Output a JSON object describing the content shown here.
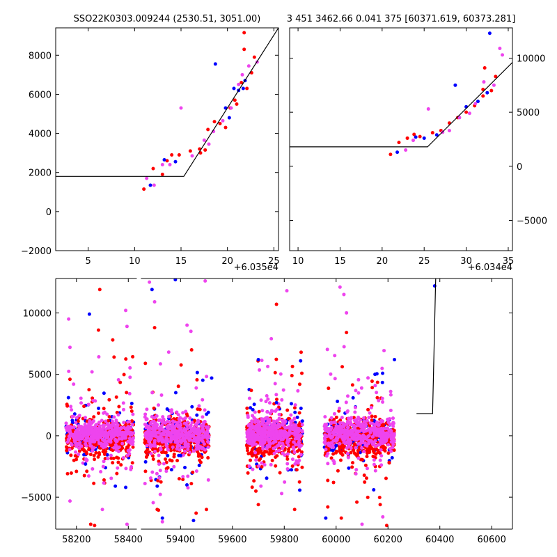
{
  "figure": {
    "background": "#ffffff",
    "colors": {
      "blue": "#0000ff",
      "red": "#ff0000",
      "magenta": "#ee44ee",
      "model": "#000000"
    }
  },
  "chart_data": [
    {
      "id": "panel-left",
      "type": "scatter",
      "title": "SSO22K0303.009244 (2530.51, 3051.00)",
      "x_offset_label": "+6.035e4",
      "xlim": [
        1.5,
        25.5
      ],
      "ylim": [
        -2000,
        9400
      ],
      "xticks": [
        5,
        10,
        15,
        20,
        25
      ],
      "yticks": [
        -2000,
        0,
        2000,
        4000,
        6000,
        8000
      ],
      "ytick_side": "left",
      "model": {
        "x": [
          1.5,
          15.3,
          25.5
        ],
        "y": [
          1800,
          1800,
          9400
        ]
      },
      "series": [
        {
          "color": "#ff0000",
          "points": [
            [
              11,
              1150
            ],
            [
              12,
              2200
            ],
            [
              13,
              1900
            ],
            [
              13.5,
              2600
            ],
            [
              14,
              2900
            ],
            [
              14.8,
              2900
            ],
            [
              16,
              3100
            ],
            [
              17,
              3200
            ],
            [
              17.6,
              3150
            ],
            [
              17.9,
              4200
            ],
            [
              18.6,
              4600
            ],
            [
              19.2,
              4500
            ],
            [
              19.8,
              4300
            ],
            [
              20.3,
              5300
            ],
            [
              20.8,
              5700
            ],
            [
              21,
              5500
            ],
            [
              21.5,
              6600
            ],
            [
              21.8,
              8300
            ],
            [
              21.8,
              9150
            ],
            [
              22.1,
              6300
            ],
            [
              22.6,
              7100
            ],
            [
              22.9,
              7900
            ],
            [
              17.1,
              3000
            ]
          ]
        },
        {
          "color": "#0000ff",
          "points": [
            [
              11.7,
              1350
            ],
            [
              13.2,
              2650
            ],
            [
              14.4,
              2550
            ],
            [
              18.7,
              7550
            ],
            [
              19.8,
              5300
            ],
            [
              20.2,
              4800
            ],
            [
              20.7,
              6300
            ],
            [
              21.2,
              6200
            ],
            [
              21.7,
              6300
            ],
            [
              21.9,
              6700
            ]
          ]
        },
        {
          "color": "#ee44ee",
          "points": [
            [
              11.3,
              1700
            ],
            [
              12.1,
              1350
            ],
            [
              13,
              2400
            ],
            [
              13.8,
              2400
            ],
            [
              15,
              5300
            ],
            [
              16.2,
              2850
            ],
            [
              17.5,
              3650
            ],
            [
              18,
              3450
            ],
            [
              18.5,
              4100
            ],
            [
              19.5,
              4650
            ],
            [
              20.4,
              5300
            ],
            [
              21.2,
              6500
            ],
            [
              22.3,
              7450
            ],
            [
              23.2,
              7650
            ],
            [
              21.6,
              7000
            ]
          ]
        }
      ]
    },
    {
      "id": "panel-right",
      "type": "scatter",
      "title": "3 451 3462.66 0.041 375 [60371.619, 60373.281]",
      "x_offset_label": "+6.034e4",
      "xlim": [
        9,
        35.5
      ],
      "ylim": [
        -7800,
        12800
      ],
      "xticks": [
        10,
        15,
        20,
        25,
        30,
        35
      ],
      "yticks": [
        -5000,
        0,
        5000,
        10000
      ],
      "ytick_side": "right",
      "model": {
        "x": [
          9,
          25.4,
          35.5
        ],
        "y": [
          1800,
          1800,
          9600
        ]
      },
      "series": [
        {
          "color": "#ff0000",
          "points": [
            [
              21,
              1100
            ],
            [
              22,
              2200
            ],
            [
              23,
              2600
            ],
            [
              23.8,
              2950
            ],
            [
              24.5,
              2750
            ],
            [
              26,
              3100
            ],
            [
              27,
              3300
            ],
            [
              28,
              4000
            ],
            [
              29,
              4500
            ],
            [
              30,
              5000
            ],
            [
              31,
              5600
            ],
            [
              32,
              6500
            ],
            [
              32,
              7100
            ],
            [
              32.2,
              9100
            ],
            [
              33,
              7000
            ],
            [
              33.5,
              8300
            ]
          ]
        },
        {
          "color": "#0000ff",
          "points": [
            [
              21.8,
              1300
            ],
            [
              24,
              2700
            ],
            [
              25,
              2600
            ],
            [
              26.5,
              2900
            ],
            [
              28.7,
              7500
            ],
            [
              30,
              5500
            ],
            [
              31.4,
              6000
            ],
            [
              32.5,
              6800
            ],
            [
              32.8,
              12300
            ]
          ]
        },
        {
          "color": "#ee44ee",
          "points": [
            [
              22.8,
              1500
            ],
            [
              23.7,
              2400
            ],
            [
              25.5,
              5300
            ],
            [
              27.2,
              3150
            ],
            [
              28,
              3300
            ],
            [
              29.2,
              4500
            ],
            [
              30.4,
              4900
            ],
            [
              31.1,
              5800
            ],
            [
              32.1,
              7800
            ],
            [
              33.3,
              7500
            ],
            [
              34,
              10900
            ],
            [
              34.3,
              10300
            ]
          ]
        }
      ]
    },
    {
      "id": "panel-bottom",
      "type": "scatter",
      "xlim": [
        58120,
        60680
      ],
      "ylim": [
        -7600,
        12800
      ],
      "xticks": [
        58200,
        58400,
        59400,
        59600,
        59800,
        60000,
        60200,
        60400,
        60600
      ],
      "yticks": [
        -5000,
        0,
        5000,
        10000
      ],
      "ytick_side": "left",
      "break": {
        "x_start": 58430,
        "x_end": 59250,
        "gap": [
          58432,
          58448
        ]
      },
      "model": {
        "x": [
          60310,
          60358,
          60358,
          60372,
          60384
        ],
        "y": [
          1800,
          1800,
          1800,
          1800,
          12800
        ]
      },
      "clusters": [
        {
          "xmin": 58160,
          "xmax": 58420,
          "core_sd": 500,
          "tail": [
            -7400,
            11800
          ]
        },
        {
          "xmin": 59262,
          "xmax": 59510,
          "core_sd": 600,
          "tail": [
            -7600,
            12800
          ]
        },
        {
          "xmin": 59655,
          "xmax": 59870,
          "core_sd": 600,
          "tail": [
            -7000,
            10800
          ]
        },
        {
          "xmin": 59955,
          "xmax": 60225,
          "core_sd": 600,
          "tail": [
            -7200,
            12100
          ]
        }
      ],
      "outliers": [
        {
          "color": "#0000ff",
          "points": [
            [
              58250,
              9900
            ],
            [
              58235,
              -2300
            ],
            [
              58350,
              -4100
            ],
            [
              58390,
              -4200
            ],
            [
              59290,
              11900
            ],
            [
              59310,
              -4100
            ],
            [
              59380,
              12700
            ],
            [
              59450,
              -6900
            ],
            [
              59520,
              4700
            ],
            [
              59330,
              -6700
            ],
            [
              59700,
              6200
            ],
            [
              59770,
              2700
            ],
            [
              59870,
              1200
            ],
            [
              59960,
              -6700
            ],
            [
              60000,
              -800
            ],
            [
              60150,
              5000
            ],
            [
              60225,
              6200
            ],
            [
              60005,
              2800
            ],
            [
              60145,
              -4400
            ],
            [
              59400,
              -1600
            ],
            [
              60380,
              12200
            ]
          ]
        },
        {
          "color": "#ff0000",
          "points": [
            [
              58175,
              4600
            ],
            [
              58270,
              -7300
            ],
            [
              58285,
              8600
            ],
            [
              58290,
              11900
            ],
            [
              58340,
              7800
            ],
            [
              58255,
              -7200
            ],
            [
              59300,
              8800
            ],
            [
              59310,
              -6000
            ],
            [
              59460,
              -6300
            ],
            [
              59500,
              -6000
            ],
            [
              59700,
              -5600
            ],
            [
              59770,
              10700
            ],
            [
              59840,
              -6000
            ],
            [
              59865,
              6800
            ],
            [
              59990,
              -3800
            ],
            [
              60020,
              -6700
            ],
            [
              60040,
              8400
            ],
            [
              60195,
              -7300
            ],
            [
              60170,
              -5600
            ],
            [
              58200,
              -2900
            ],
            [
              59395,
              -3500
            ],
            [
              60080,
              -5400
            ]
          ]
        },
        {
          "color": "#ee44ee",
          "points": [
            [
              58170,
              9500
            ],
            [
              58175,
              7200
            ],
            [
              58300,
              -6000
            ],
            [
              58390,
              10200
            ],
            [
              58395,
              8900
            ],
            [
              58395,
              -7200
            ],
            [
              59280,
              12500
            ],
            [
              59300,
              10900
            ],
            [
              59330,
              -7000
            ],
            [
              59495,
              12600
            ],
            [
              59425,
              9000
            ],
            [
              59440,
              8500
            ],
            [
              59810,
              11800
            ],
            [
              59710,
              -4100
            ],
            [
              59790,
              -4700
            ],
            [
              60030,
              11500
            ],
            [
              60040,
              10000
            ],
            [
              60015,
              12100
            ],
            [
              60100,
              -7200
            ],
            [
              58260,
              5200
            ],
            [
              59750,
              7900
            ],
            [
              60180,
              -6600
            ]
          ]
        }
      ]
    }
  ]
}
